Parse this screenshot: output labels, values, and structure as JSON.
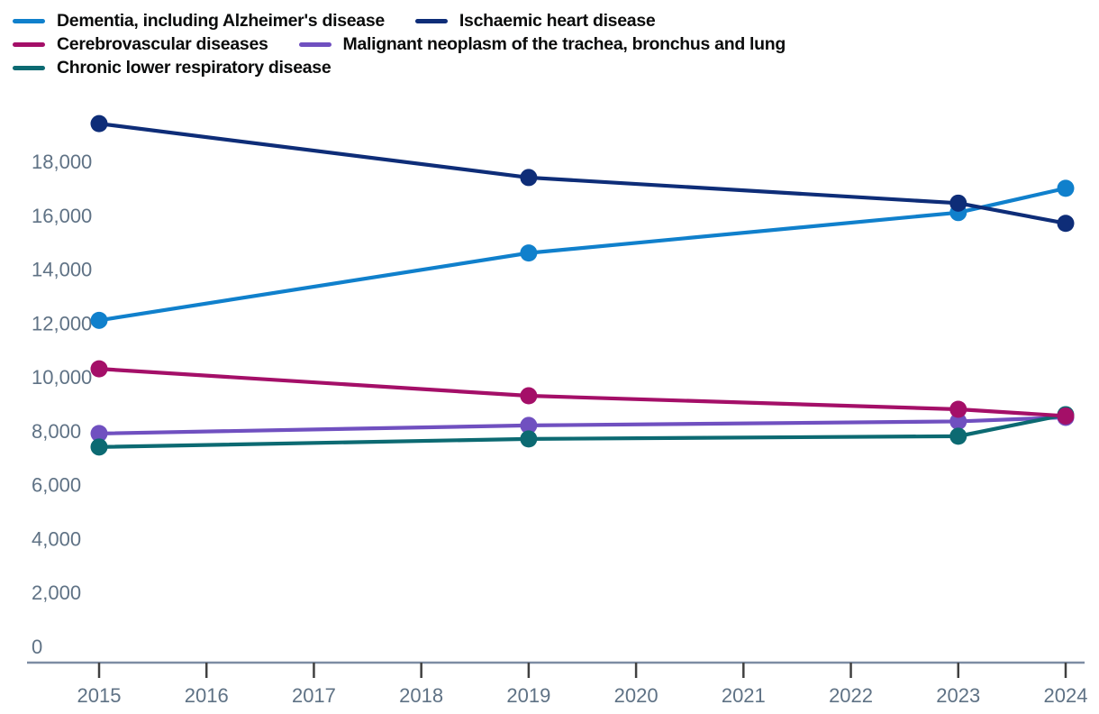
{
  "chart_data": {
    "type": "line",
    "title": "",
    "xlabel": "",
    "ylabel": "",
    "grid": false,
    "legend_position": "top",
    "x": [
      2015,
      2019,
      2023,
      2024
    ],
    "x_axis_ticks": [
      "2015",
      "2016",
      "2017",
      "2018",
      "2019",
      "2020",
      "2021",
      "2022",
      "2023",
      "2024"
    ],
    "y_ticks": [
      0,
      2000,
      4000,
      6000,
      8000,
      10000,
      12000,
      14000,
      16000,
      18000
    ],
    "y_tick_labels": [
      "0",
      "2,000",
      "4,000",
      "6,000",
      "8,000",
      "10,000",
      "12,000",
      "14,000",
      "16,000",
      "18,000"
    ],
    "ylim": [
      0,
      19500
    ],
    "xlim": [
      2015,
      2024
    ],
    "series": [
      {
        "name": "Dementia, including Alzheimer's disease",
        "color": "#1080cc",
        "values": [
          12100,
          14600,
          16100,
          17000
        ]
      },
      {
        "name": "Ischaemic heart disease",
        "color": "#0e2d78",
        "values": [
          19400,
          17400,
          16450,
          15700
        ]
      },
      {
        "name": "Cerebrovascular diseases",
        "color": "#a40f68",
        "values": [
          10300,
          9300,
          8800,
          8550
        ]
      },
      {
        "name": "Malignant neoplasm of the trachea, bronchus and lung",
        "color": "#7050c0",
        "values": [
          7900,
          8200,
          8350,
          8500
        ]
      },
      {
        "name": "Chronic lower respiratory disease",
        "color": "#0c6a72",
        "values": [
          7400,
          7700,
          7800,
          8600
        ]
      }
    ]
  },
  "legend": {
    "rows": [
      [
        0,
        1
      ],
      [
        2,
        3
      ],
      [
        4
      ]
    ]
  },
  "axis": {
    "line_color": "#7d8ca3",
    "tick_color": "#404040",
    "label_color": "#5f7285"
  }
}
